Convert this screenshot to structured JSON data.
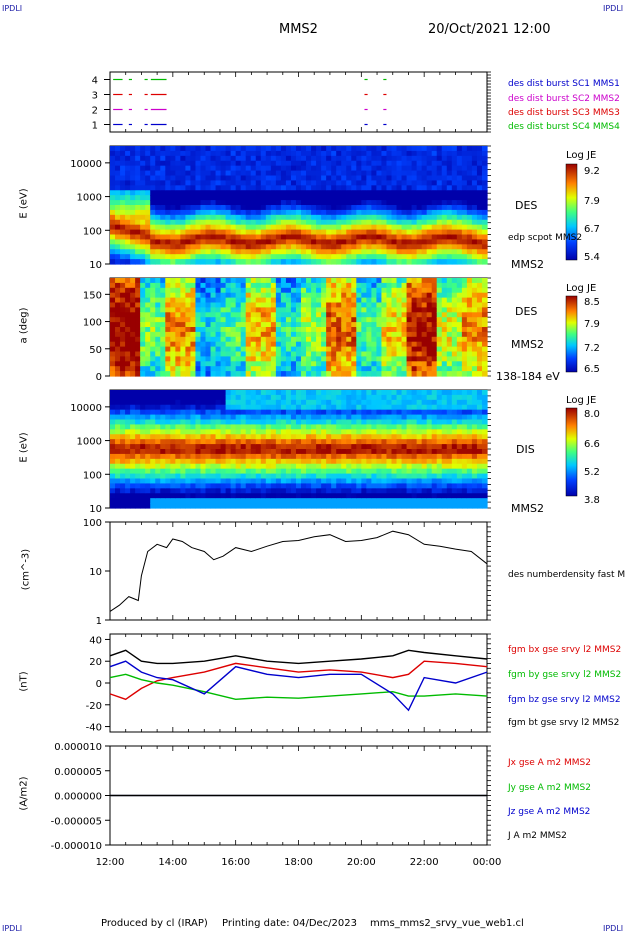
{
  "header": {
    "corner_tl": "IPDLI",
    "corner_tr": "IPDLI",
    "corner_bl": "IPDLI",
    "corner_br": "IPDLI",
    "spacecraft": "MMS2",
    "datetime": "20/Oct/2021 12:00"
  },
  "footer": {
    "produced": "Produced by cl (IRAP)",
    "printing": "Printing date: 04/Dec/2023",
    "file": "mms_mms2_srvy_vue_web1.cl"
  },
  "x_axis": {
    "ticks": [
      "12:00",
      "14:00",
      "16:00",
      "18:00",
      "20:00",
      "22:00",
      "00:00"
    ]
  },
  "colors": {
    "blue": "#0000cc",
    "magenta": "#cc00cc",
    "red": "#dd0000",
    "green": "#00bb00",
    "black": "#000000"
  },
  "chart_data": [
    {
      "type": "scatter",
      "name": "burst-availability",
      "yticks": [
        "1",
        "2",
        "3",
        "4"
      ],
      "ylim": [
        0.5,
        4.5
      ],
      "series": [
        {
          "name": "des dist burst SC1 MMS1",
          "color": "#0000cc",
          "y": 1,
          "intervals": [
            [
              0.1,
              0.4
            ],
            [
              0.6,
              0.7
            ],
            [
              1.1,
              1.2
            ],
            [
              1.3,
              1.8
            ],
            [
              8.1,
              8.2
            ],
            [
              8.7,
              8.8
            ]
          ]
        },
        {
          "name": "des dist burst SC2 MMS2",
          "color": "#cc00cc",
          "y": 2,
          "intervals": [
            [
              0.1,
              0.4
            ],
            [
              0.6,
              0.7
            ],
            [
              1.1,
              1.2
            ],
            [
              1.3,
              1.8
            ],
            [
              8.1,
              8.2
            ],
            [
              8.7,
              8.8
            ]
          ]
        },
        {
          "name": "des dist burst SC3 MMS3",
          "color": "#dd0000",
          "y": 3,
          "intervals": [
            [
              0.1,
              0.4
            ],
            [
              0.6,
              0.7
            ],
            [
              1.1,
              1.2
            ],
            [
              1.3,
              1.8
            ],
            [
              8.1,
              8.2
            ],
            [
              8.7,
              8.8
            ]
          ]
        },
        {
          "name": "des dist burst SC4 MMS4",
          "color": "#00bb00",
          "y": 4,
          "intervals": [
            [
              0.1,
              0.4
            ],
            [
              0.6,
              0.7
            ],
            [
              1.1,
              1.2
            ],
            [
              1.3,
              1.8
            ],
            [
              8.1,
              8.2
            ],
            [
              8.7,
              8.8
            ]
          ]
        }
      ]
    },
    {
      "type": "heatmap",
      "name": "des-energy",
      "ylabel": "E (eV)",
      "yscale": "log",
      "yticks": [
        "10",
        "100",
        "1000",
        "10000"
      ],
      "labels": [
        "DES",
        "edp scpot MMS2",
        "MMS2"
      ],
      "colorbar": {
        "title": "Log JE",
        "ticks": [
          "9.2",
          "7.9",
          "6.7",
          "5.4"
        ],
        "range": [
          5.4,
          9.2
        ]
      }
    },
    {
      "type": "heatmap",
      "name": "des-pitch-angle",
      "ylabel": "a (deg)",
      "yticks": [
        "0",
        "50",
        "100",
        "150"
      ],
      "ylim": [
        0,
        180
      ],
      "labels": [
        "DES",
        "MMS2",
        "138-184 eV"
      ],
      "colorbar": {
        "title": "Log JE",
        "ticks": [
          "8.5",
          "7.9",
          "7.2",
          "6.5"
        ],
        "range": [
          6.5,
          8.5
        ]
      }
    },
    {
      "type": "heatmap",
      "name": "dis-energy",
      "ylabel": "E (eV)",
      "yscale": "log",
      "yticks": [
        "10",
        "100",
        "1000",
        "10000"
      ],
      "labels": [
        "DIS",
        "MMS2"
      ],
      "colorbar": {
        "title": "Log JE",
        "ticks": [
          "8.0",
          "6.6",
          "5.2",
          "3.8"
        ],
        "range": [
          3.8,
          8.0
        ]
      }
    },
    {
      "type": "line",
      "name": "density",
      "ylabel": "(cm^-3)",
      "yscale": "log",
      "yticks": [
        "1",
        "10",
        "100"
      ],
      "series": [
        {
          "name": "des numberdensity fast M",
          "color": "#000000",
          "x": [
            12.0,
            12.3,
            12.6,
            12.9,
            13.0,
            13.2,
            13.5,
            13.8,
            14.0,
            14.3,
            14.6,
            15.0,
            15.3,
            15.6,
            16.0,
            16.5,
            17.0,
            17.5,
            18.0,
            18.5,
            19.0,
            19.5,
            20.0,
            20.5,
            21.0,
            21.5,
            22.0,
            22.5,
            23.0,
            23.5,
            24.0
          ],
          "y": [
            1.5,
            2.0,
            3.0,
            2.5,
            8.0,
            25,
            35,
            30,
            45,
            40,
            30,
            25,
            17,
            20,
            30,
            25,
            32,
            40,
            42,
            50,
            55,
            40,
            42,
            48,
            65,
            55,
            35,
            32,
            28,
            25,
            14
          ]
        }
      ]
    },
    {
      "type": "line",
      "name": "magnetic-field",
      "ylabel": "(nT)",
      "yticks": [
        "-40",
        "-20",
        "0",
        "20",
        "40"
      ],
      "ylim": [
        -45,
        45
      ],
      "series": [
        {
          "name": "fgm bx gse srvy l2 MMS2",
          "color": "#dd0000",
          "x": [
            12.0,
            12.5,
            13.0,
            13.5,
            14.0,
            15.0,
            16.0,
            17.0,
            18.0,
            19.0,
            20.0,
            21.0,
            21.5,
            22.0,
            23.0,
            24.0
          ],
          "y": [
            -10,
            -15,
            -5,
            2,
            5,
            10,
            18,
            14,
            10,
            12,
            10,
            5,
            8,
            20,
            18,
            15
          ]
        },
        {
          "name": "fgm by gse srvy l2 MMS2",
          "color": "#00bb00",
          "x": [
            12.0,
            12.5,
            13.0,
            13.5,
            14.0,
            15.0,
            16.0,
            17.0,
            18.0,
            19.0,
            20.0,
            21.0,
            21.5,
            22.0,
            23.0,
            24.0
          ],
          "y": [
            5,
            8,
            3,
            0,
            -2,
            -8,
            -15,
            -13,
            -14,
            -12,
            -10,
            -8,
            -12,
            -12,
            -10,
            -12
          ]
        },
        {
          "name": "fgm bz gse srvy l2 MMS2",
          "color": "#0000cc",
          "x": [
            12.0,
            12.5,
            13.0,
            13.5,
            14.0,
            15.0,
            16.0,
            17.0,
            18.0,
            19.0,
            20.0,
            21.0,
            21.5,
            22.0,
            23.0,
            24.0
          ],
          "y": [
            15,
            20,
            10,
            5,
            3,
            -10,
            15,
            8,
            5,
            8,
            8,
            -10,
            -25,
            5,
            0,
            10
          ]
        },
        {
          "name": "fgm bt gse srvy l2 MMS2",
          "color": "#000000",
          "x": [
            12.0,
            12.5,
            13.0,
            13.5,
            14.0,
            15.0,
            16.0,
            17.0,
            18.0,
            19.0,
            20.0,
            21.0,
            21.5,
            22.0,
            23.0,
            24.0
          ],
          "y": [
            25,
            30,
            20,
            18,
            18,
            20,
            25,
            20,
            18,
            20,
            22,
            25,
            30,
            28,
            25,
            22
          ]
        }
      ]
    },
    {
      "type": "line",
      "name": "current-density",
      "ylabel": "(A/m2)",
      "yticks": [
        "-0.000010",
        "-0.000005",
        "0.000000",
        "0.000005",
        "0.000010"
      ],
      "ylim": [
        -1e-05,
        1e-05
      ],
      "series": [
        {
          "name": "Jx gse A m2 MMS2",
          "color": "#dd0000",
          "x": [
            12,
            24
          ],
          "y": [
            0,
            0
          ]
        },
        {
          "name": "Jy gse A m2 MMS2",
          "color": "#00bb00",
          "x": [
            12,
            24
          ],
          "y": [
            0,
            0
          ]
        },
        {
          "name": "Jz gse A m2 MMS2",
          "color": "#0000cc",
          "x": [
            12,
            24
          ],
          "y": [
            0,
            0
          ]
        },
        {
          "name": "J A m2 MMS2",
          "color": "#000000",
          "x": [
            12,
            24
          ],
          "y": [
            0,
            0
          ]
        }
      ]
    }
  ]
}
